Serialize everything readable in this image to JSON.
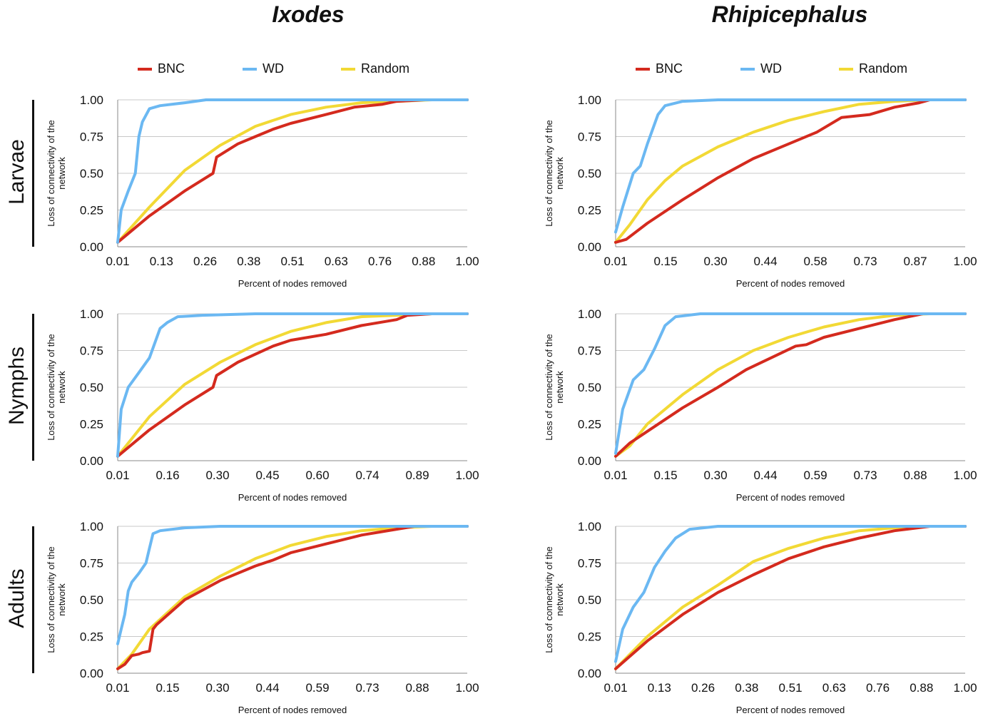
{
  "titles": {
    "left": "Ixodes",
    "right": "Rhipicephalus"
  },
  "row_labels": [
    "Larvae",
    "Nymphs",
    "Adults"
  ],
  "legend": [
    {
      "label": "BNC",
      "color": "#d42a1e"
    },
    {
      "label": "WD",
      "color": "#6bb8f2"
    },
    {
      "label": "Random",
      "color": "#f2d935"
    }
  ],
  "chart_data": [
    {
      "type": "line",
      "panel": "Ixodes - Larvae",
      "xlabel": "Percent of nodes removed",
      "ylabel": "Loss of connectivity of the network",
      "xtick_labels": [
        "0.01",
        "0.13",
        "0.26",
        "0.38",
        "0.51",
        "0.63",
        "0.76",
        "0.88",
        "1.00"
      ],
      "ytick_labels": [
        "0.00",
        "0.25",
        "0.50",
        "0.75",
        "1.00"
      ],
      "xlim": [
        0.01,
        1.0
      ],
      "ylim": [
        0,
        1
      ],
      "grid": true,
      "series": [
        {
          "name": "BNC",
          "color": "#d42a1e",
          "x": [
            0.01,
            0.1,
            0.2,
            0.28,
            0.29,
            0.35,
            0.4,
            0.45,
            0.5,
            0.6,
            0.68,
            0.76,
            0.8,
            0.88,
            1.0
          ],
          "y": [
            0.03,
            0.21,
            0.38,
            0.5,
            0.61,
            0.7,
            0.75,
            0.8,
            0.84,
            0.9,
            0.95,
            0.97,
            0.99,
            1.0,
            1.0
          ]
        },
        {
          "name": "WD",
          "color": "#6bb8f2",
          "x": [
            0.01,
            0.02,
            0.04,
            0.06,
            0.07,
            0.08,
            0.1,
            0.13,
            0.2,
            0.26,
            0.4,
            1.0
          ],
          "y": [
            0.03,
            0.25,
            0.38,
            0.5,
            0.75,
            0.85,
            0.94,
            0.96,
            0.98,
            1.0,
            1.0,
            1.0
          ]
        },
        {
          "name": "Random",
          "color": "#f2d935",
          "x": [
            0.01,
            0.1,
            0.2,
            0.3,
            0.4,
            0.5,
            0.6,
            0.7,
            0.8,
            0.9,
            1.0
          ],
          "y": [
            0.03,
            0.27,
            0.52,
            0.69,
            0.82,
            0.9,
            0.95,
            0.98,
            0.99,
            1.0,
            1.0
          ]
        }
      ]
    },
    {
      "type": "line",
      "panel": "Rhipicephalus - Larvae",
      "xlabel": "Percent of nodes removed",
      "ylabel": "Loss of connectivity of the network",
      "xtick_labels": [
        "0.01",
        "0.15",
        "0.30",
        "0.44",
        "0.58",
        "0.73",
        "0.87",
        "1.00"
      ],
      "ytick_labels": [
        "0.00",
        "0.25",
        "0.50",
        "0.75",
        "1.00"
      ],
      "xlim": [
        0.01,
        1.0
      ],
      "ylim": [
        0,
        1
      ],
      "grid": true,
      "series": [
        {
          "name": "BNC",
          "color": "#d42a1e",
          "x": [
            0.01,
            0.04,
            0.1,
            0.2,
            0.3,
            0.4,
            0.5,
            0.58,
            0.65,
            0.73,
            0.8,
            0.87,
            0.9,
            1.0
          ],
          "y": [
            0.03,
            0.05,
            0.16,
            0.32,
            0.47,
            0.6,
            0.7,
            0.78,
            0.88,
            0.9,
            0.95,
            0.98,
            1.0,
            1.0
          ]
        },
        {
          "name": "WD",
          "color": "#6bb8f2",
          "x": [
            0.01,
            0.03,
            0.06,
            0.08,
            0.1,
            0.13,
            0.15,
            0.2,
            0.3,
            1.0
          ],
          "y": [
            0.1,
            0.27,
            0.5,
            0.55,
            0.7,
            0.9,
            0.96,
            0.99,
            1.0,
            1.0
          ]
        },
        {
          "name": "Random",
          "color": "#f2d935",
          "x": [
            0.01,
            0.05,
            0.1,
            0.15,
            0.2,
            0.3,
            0.4,
            0.5,
            0.6,
            0.7,
            0.8,
            0.9,
            1.0
          ],
          "y": [
            0.03,
            0.15,
            0.32,
            0.45,
            0.55,
            0.68,
            0.78,
            0.86,
            0.92,
            0.97,
            0.99,
            1.0,
            1.0
          ]
        }
      ]
    },
    {
      "type": "line",
      "panel": "Ixodes - Nymphs",
      "xlabel": "Percent of nodes removed",
      "ylabel": "Loss of connectivity of the network",
      "xtick_labels": [
        "0.01",
        "0.16",
        "0.30",
        "0.45",
        "0.60",
        "0.74",
        "0.89",
        "1.00"
      ],
      "ytick_labels": [
        "0.00",
        "0.25",
        "0.50",
        "0.75",
        "1.00"
      ],
      "xlim": [
        0.01,
        1.0
      ],
      "ylim": [
        0,
        1
      ],
      "grid": true,
      "series": [
        {
          "name": "BNC",
          "color": "#d42a1e",
          "x": [
            0.01,
            0.1,
            0.2,
            0.28,
            0.29,
            0.35,
            0.45,
            0.5,
            0.6,
            0.7,
            0.8,
            0.83,
            0.9,
            1.0
          ],
          "y": [
            0.03,
            0.21,
            0.38,
            0.5,
            0.58,
            0.67,
            0.78,
            0.82,
            0.86,
            0.92,
            0.96,
            0.99,
            1.0,
            1.0
          ]
        },
        {
          "name": "WD",
          "color": "#6bb8f2",
          "x": [
            0.01,
            0.02,
            0.04,
            0.07,
            0.1,
            0.13,
            0.15,
            0.18,
            0.25,
            0.4,
            1.0
          ],
          "y": [
            0.03,
            0.35,
            0.5,
            0.6,
            0.7,
            0.9,
            0.94,
            0.98,
            0.99,
            1.0,
            1.0
          ]
        },
        {
          "name": "Random",
          "color": "#f2d935",
          "x": [
            0.01,
            0.1,
            0.2,
            0.3,
            0.4,
            0.5,
            0.6,
            0.7,
            0.8,
            0.9,
            1.0
          ],
          "y": [
            0.03,
            0.3,
            0.52,
            0.67,
            0.79,
            0.88,
            0.94,
            0.98,
            0.99,
            1.0,
            1.0
          ]
        }
      ]
    },
    {
      "type": "line",
      "panel": "Rhipicephalus - Nymphs",
      "xlabel": "Percent of nodes removed",
      "ylabel": "Loss of connectivity of the network",
      "xtick_labels": [
        "0.01",
        "0.15",
        "0.30",
        "0.44",
        "0.59",
        "0.73",
        "0.88",
        "1.00"
      ],
      "ytick_labels": [
        "0.00",
        "0.25",
        "0.50",
        "0.75",
        "1.00"
      ],
      "xlim": [
        0.01,
        1.0
      ],
      "ylim": [
        0,
        1
      ],
      "grid": true,
      "series": [
        {
          "name": "BNC",
          "color": "#d42a1e",
          "x": [
            0.01,
            0.05,
            0.1,
            0.2,
            0.3,
            0.38,
            0.45,
            0.52,
            0.55,
            0.6,
            0.7,
            0.8,
            0.88,
            1.0
          ],
          "y": [
            0.03,
            0.12,
            0.2,
            0.36,
            0.5,
            0.62,
            0.7,
            0.78,
            0.79,
            0.84,
            0.9,
            0.96,
            1.0,
            1.0
          ]
        },
        {
          "name": "WD",
          "color": "#6bb8f2",
          "x": [
            0.01,
            0.03,
            0.06,
            0.09,
            0.12,
            0.15,
            0.18,
            0.25,
            0.4,
            1.0
          ],
          "y": [
            0.05,
            0.35,
            0.55,
            0.62,
            0.76,
            0.92,
            0.98,
            1.0,
            1.0,
            1.0
          ]
        },
        {
          "name": "Random",
          "color": "#f2d935",
          "x": [
            0.01,
            0.05,
            0.1,
            0.2,
            0.3,
            0.4,
            0.5,
            0.6,
            0.7,
            0.8,
            0.9,
            1.0
          ],
          "y": [
            0.03,
            0.1,
            0.25,
            0.45,
            0.62,
            0.75,
            0.84,
            0.91,
            0.96,
            0.99,
            1.0,
            1.0
          ]
        }
      ]
    },
    {
      "type": "line",
      "panel": "Ixodes - Adults",
      "xlabel": "Percent of nodes removed",
      "ylabel": "Loss of connectivity of the network",
      "xtick_labels": [
        "0.01",
        "0.15",
        "0.30",
        "0.44",
        "0.59",
        "0.73",
        "0.88",
        "1.00"
      ],
      "ytick_labels": [
        "0.00",
        "0.25",
        "0.50",
        "0.75",
        "1.00"
      ],
      "xlim": [
        0.01,
        1.0
      ],
      "ylim": [
        0,
        1
      ],
      "grid": true,
      "series": [
        {
          "name": "BNC",
          "color": "#d42a1e",
          "x": [
            0.01,
            0.03,
            0.05,
            0.07,
            0.08,
            0.1,
            0.11,
            0.12,
            0.2,
            0.3,
            0.4,
            0.45,
            0.5,
            0.6,
            0.7,
            0.8,
            0.85,
            1.0
          ],
          "y": [
            0.03,
            0.06,
            0.12,
            0.13,
            0.14,
            0.15,
            0.3,
            0.33,
            0.5,
            0.63,
            0.73,
            0.77,
            0.82,
            0.88,
            0.94,
            0.98,
            1.0,
            1.0
          ]
        },
        {
          "name": "WD",
          "color": "#6bb8f2",
          "x": [
            0.01,
            0.02,
            0.03,
            0.04,
            0.05,
            0.07,
            0.09,
            0.1,
            0.11,
            0.13,
            0.2,
            0.3,
            1.0
          ],
          "y": [
            0.2,
            0.3,
            0.4,
            0.56,
            0.62,
            0.68,
            0.75,
            0.85,
            0.95,
            0.97,
            0.99,
            1.0,
            1.0
          ]
        },
        {
          "name": "Random",
          "color": "#f2d935",
          "x": [
            0.01,
            0.05,
            0.1,
            0.2,
            0.3,
            0.4,
            0.5,
            0.6,
            0.7,
            0.8,
            0.9,
            1.0
          ],
          "y": [
            0.03,
            0.13,
            0.3,
            0.52,
            0.66,
            0.78,
            0.87,
            0.93,
            0.97,
            0.99,
            1.0,
            1.0
          ]
        }
      ]
    },
    {
      "type": "line",
      "panel": "Rhipicephalus - Adults",
      "xlabel": "Percent of nodes removed",
      "ylabel": "Loss of connectivity of the network",
      "xtick_labels": [
        "0.01",
        "0.13",
        "0.26",
        "0.38",
        "0.51",
        "0.63",
        "0.76",
        "0.88",
        "1.00"
      ],
      "ytick_labels": [
        "0.00",
        "0.25",
        "0.50",
        "0.75",
        "1.00"
      ],
      "xlim": [
        0.01,
        1.0
      ],
      "ylim": [
        0,
        1
      ],
      "grid": true,
      "series": [
        {
          "name": "BNC",
          "color": "#d42a1e",
          "x": [
            0.01,
            0.1,
            0.2,
            0.3,
            0.4,
            0.5,
            0.6,
            0.7,
            0.8,
            0.9,
            1.0
          ],
          "y": [
            0.03,
            0.22,
            0.4,
            0.55,
            0.67,
            0.78,
            0.86,
            0.92,
            0.97,
            1.0,
            1.0
          ]
        },
        {
          "name": "WD",
          "color": "#6bb8f2",
          "x": [
            0.01,
            0.03,
            0.06,
            0.09,
            0.12,
            0.15,
            0.18,
            0.22,
            0.3,
            1.0
          ],
          "y": [
            0.08,
            0.3,
            0.45,
            0.55,
            0.72,
            0.83,
            0.92,
            0.98,
            1.0,
            1.0
          ]
        },
        {
          "name": "Random",
          "color": "#f2d935",
          "x": [
            0.01,
            0.1,
            0.2,
            0.3,
            0.4,
            0.5,
            0.6,
            0.7,
            0.8,
            0.9,
            1.0
          ],
          "y": [
            0.03,
            0.25,
            0.45,
            0.6,
            0.76,
            0.85,
            0.92,
            0.97,
            0.99,
            1.0,
            1.0
          ]
        }
      ]
    }
  ]
}
